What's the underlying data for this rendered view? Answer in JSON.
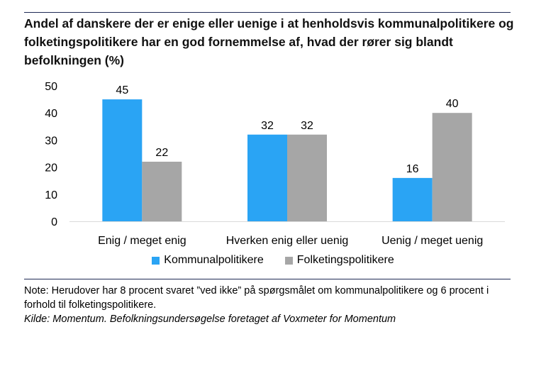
{
  "title": "Andel af danskere der er enige eller uenige i at henholdsvis kommunalpolitikere og folketingspolitikere har en god fornemmelse af, hvad der rører sig blandt befolkningen (%)",
  "note": "Note: Herudover har 8 procent svaret ”ved ikke” på spørgsmålet om kommunalpolitikere og 6 procent i forhold til folketingspolitikere.",
  "source": "Kilde: Momentum. Befolkningsundersøgelse foretaget af Voxmeter for Momentum",
  "colors": {
    "kommunal": "#2aa4f4",
    "folketing": "#a6a6a6",
    "rule": "#1f2a55"
  },
  "chart_data": {
    "type": "bar",
    "title": "Andel af danskere der er enige eller uenige i at henholdsvis kommunalpolitikere og folketingspolitikere har en god fornemmelse af, hvad der rører sig blandt befolkningen (%)",
    "categories": [
      "Enig / meget enig",
      "Hverken enig eller uenig",
      "Uenig / meget uenig"
    ],
    "series": [
      {
        "name": "Kommunalpolitikere",
        "values": [
          45,
          32,
          16
        ],
        "color": "#2aa4f4"
      },
      {
        "name": "Folketingspolitikere",
        "values": [
          22,
          32,
          40
        ],
        "color": "#a6a6a6"
      }
    ],
    "ylim": [
      0,
      50
    ],
    "yticks": [
      0,
      10,
      20,
      30,
      40,
      50
    ],
    "xlabel": "",
    "ylabel": "",
    "grid": false,
    "legend": "bottom"
  }
}
